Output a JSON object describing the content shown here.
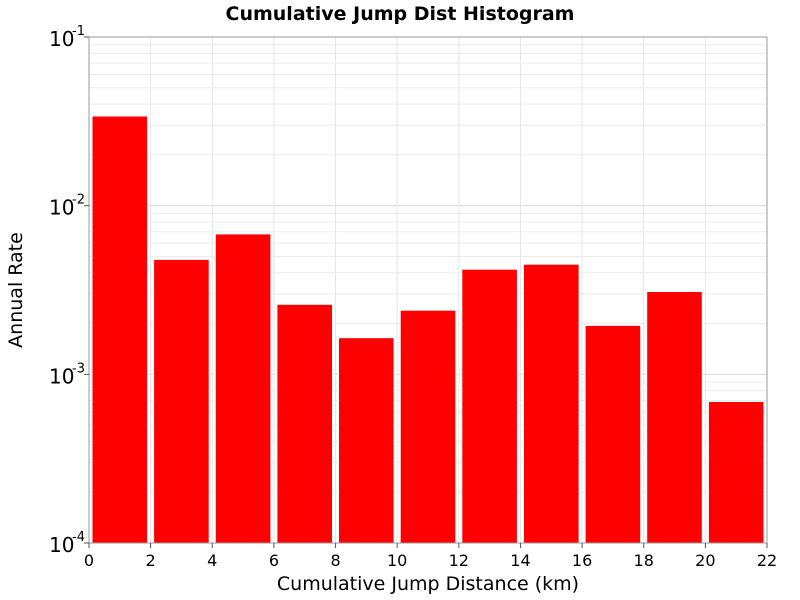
{
  "chart_data": {
    "type": "bar",
    "title": "Cumulative Jump Dist Histogram",
    "xlabel": "Cumulative Jump Distance (km)",
    "ylabel": "Annual Rate",
    "xlim": [
      0,
      22
    ],
    "ylim": [
      0.0001,
      0.1
    ],
    "yscale": "log",
    "grid": true,
    "x_ticks": [
      "0",
      "2",
      "4",
      "6",
      "8",
      "10",
      "12",
      "14",
      "16",
      "18",
      "20",
      "22"
    ],
    "y_ticks": [
      {
        "base": "10",
        "exp": "-1",
        "value": 0.1
      },
      {
        "base": "10",
        "exp": "-2",
        "value": 0.01
      },
      {
        "base": "10",
        "exp": "-3",
        "value": 0.001
      },
      {
        "base": "10",
        "exp": "-4",
        "value": 0.0001
      }
    ],
    "bin_width": 2,
    "x": [
      1,
      3,
      5,
      7,
      9,
      11,
      13,
      15,
      17,
      19,
      21
    ],
    "values": [
      0.034,
      0.0048,
      0.0068,
      0.0026,
      0.00165,
      0.0024,
      0.0042,
      0.0045,
      0.00195,
      0.0031,
      0.00069
    ],
    "bar_color": "#ff0000"
  }
}
